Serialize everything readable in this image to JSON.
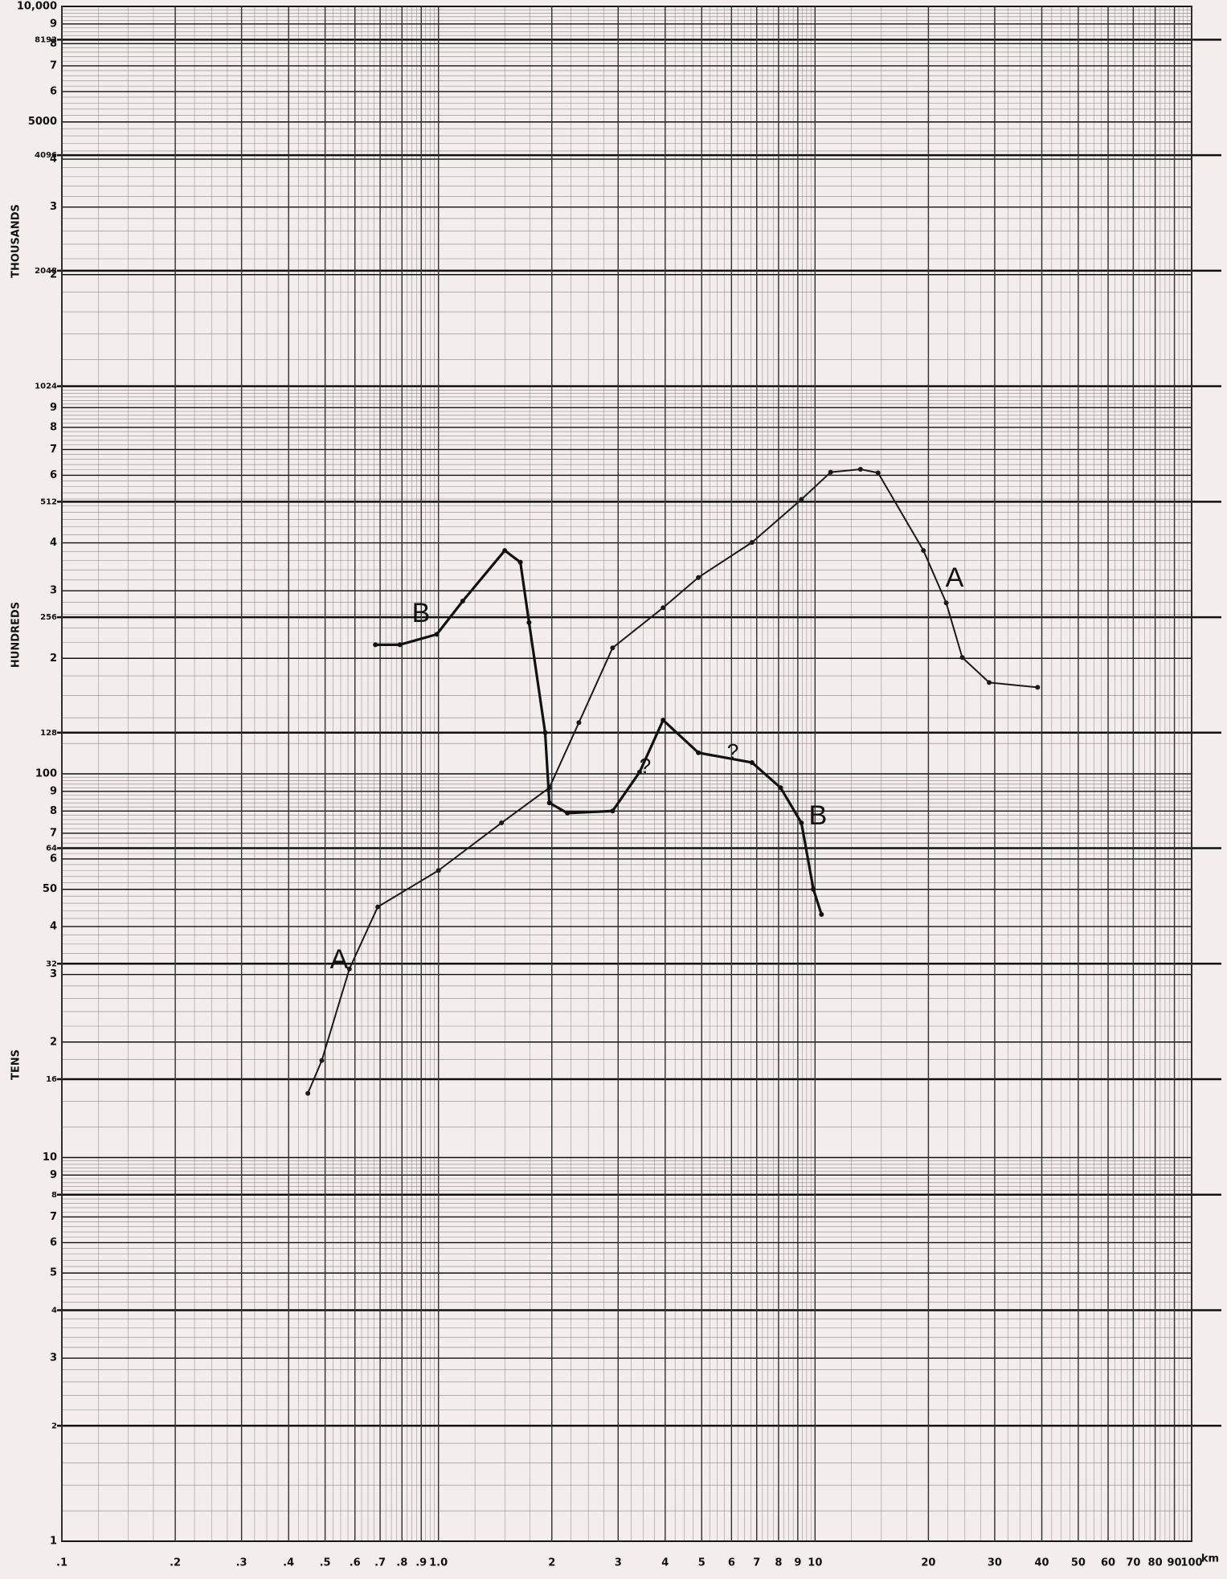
{
  "chart_data": {
    "type": "line",
    "axis_labels": [
      "THOUSANDS",
      "HUNDREDS",
      "TENS"
    ],
    "x_unit": "km",
    "log_x": true,
    "log_y": true,
    "grid": true,
    "xlim": [
      0.1,
      100
    ],
    "ylim": [
      1,
      10000
    ],
    "xticks": [
      {
        "value": 0.1,
        "label": ".1"
      },
      {
        "value": 0.2,
        "label": ".2"
      },
      {
        "value": 0.3,
        "label": ".3"
      },
      {
        "value": 0.4,
        "label": ".4"
      },
      {
        "value": 0.5,
        "label": ".5"
      },
      {
        "value": 0.6,
        "label": ".6"
      },
      {
        "value": 0.7,
        "label": ".7"
      },
      {
        "value": 0.8,
        "label": ".8"
      },
      {
        "value": 0.9,
        "label": ".9"
      },
      {
        "value": 1,
        "label": "1.0"
      },
      2,
      3,
      4,
      5,
      6,
      7,
      8,
      9,
      10,
      20,
      30,
      40,
      50,
      60,
      70,
      80,
      90,
      100
    ],
    "yticks": [
      {
        "value": 10000,
        "label": "10,000"
      },
      {
        "value": 9000,
        "label": "9"
      },
      8192,
      {
        "value": 8000,
        "label": "8"
      },
      {
        "value": 7000,
        "label": "7"
      },
      {
        "value": 6000,
        "label": "6"
      },
      5000,
      4096,
      {
        "value": 4000,
        "label": "4"
      },
      {
        "value": 3000,
        "label": "3"
      },
      2048,
      {
        "value": 2000,
        "label": "2"
      },
      1024,
      {
        "value": 900,
        "label": "9"
      },
      {
        "value": 800,
        "label": "8"
      },
      {
        "value": 700,
        "label": "7"
      },
      {
        "value": 600,
        "label": "6"
      },
      512,
      {
        "value": 400,
        "label": "4"
      },
      {
        "value": 300,
        "label": "3"
      },
      256,
      {
        "value": 200,
        "label": "2"
      },
      128,
      100,
      {
        "value": 90,
        "label": "9"
      },
      {
        "value": 80,
        "label": "8"
      },
      {
        "value": 70,
        "label": "7"
      },
      64,
      {
        "value": 60,
        "label": "6"
      },
      50,
      {
        "value": 40,
        "label": "4"
      },
      32,
      {
        "value": 30,
        "label": "3"
      },
      {
        "value": 20,
        "label": "2"
      },
      16,
      10,
      9,
      8,
      7,
      6,
      5,
      4,
      3,
      2,
      1
    ],
    "series": [
      {
        "name": "A",
        "color": "#1a1a1a",
        "x": [
          0.45,
          0.49,
          0.58,
          0.69,
          1.0,
          1.47,
          1.97,
          2.36,
          2.9,
          3.95,
          4.9,
          6.8,
          9.2,
          11,
          13.2,
          14.7,
          19.4,
          22.3,
          24.6,
          29,
          39
        ],
        "values": [
          14.7,
          17.9,
          31,
          45,
          56,
          74.5,
          92,
          136,
          213,
          271,
          325,
          401,
          519,
          611,
          622,
          609,
          382,
          279,
          201,
          173,
          168
        ]
      },
      {
        "name": "B",
        "color": "#111111",
        "x": [
          0.68,
          0.79,
          0.99,
          1.16,
          1.5,
          1.65,
          1.74,
          1.92,
          1.97,
          2.2,
          2.9,
          3.42,
          3.95,
          4.9,
          6.8,
          8.1,
          9.2,
          9.9,
          10.4
        ],
        "values": [
          217,
          217,
          231,
          282,
          382,
          356,
          248,
          128,
          84,
          79,
          80,
          101,
          138,
          113.5,
          107,
          92,
          74.5,
          50,
          43
        ]
      }
    ],
    "annotations": [
      "?",
      "?"
    ]
  }
}
